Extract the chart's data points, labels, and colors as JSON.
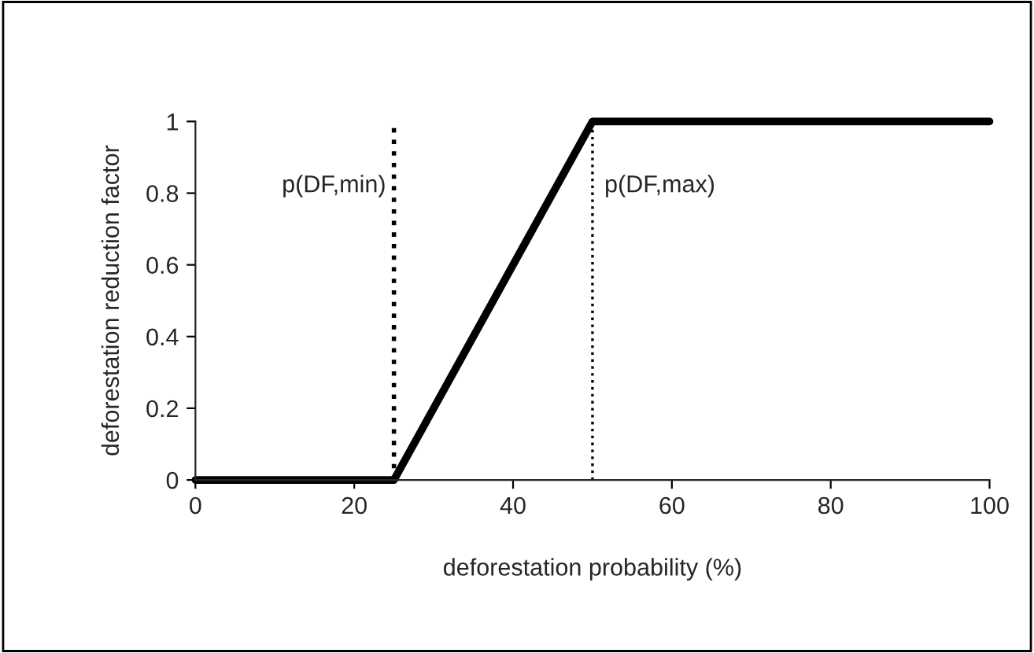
{
  "chart_data": {
    "type": "line",
    "xlabel": "deforestation probability (%)",
    "ylabel": "deforestation reduction factor",
    "x": [
      0,
      25,
      50,
      100
    ],
    "series": [
      {
        "color": "#000000",
        "values": [
          0,
          0,
          1,
          1
        ]
      }
    ],
    "xlim": [
      0,
      100
    ],
    "xticks": [
      0,
      20,
      40,
      60,
      80,
      100
    ],
    "ylim": [
      0,
      1
    ],
    "yticks": [
      0,
      0.2,
      0.4,
      0.6,
      0.8,
      1
    ],
    "ref_lines": [
      {
        "axis": "x",
        "value": 25,
        "label": "p(DF,min)",
        "color": "#000000",
        "line_style": "dotted"
      },
      {
        "axis": "x",
        "value": 50,
        "label": "p(DF,max)",
        "color": "#000000",
        "line_style": "dotted"
      }
    ],
    "grid": false,
    "legend": false,
    "line_style": "solid",
    "marker": "none"
  }
}
